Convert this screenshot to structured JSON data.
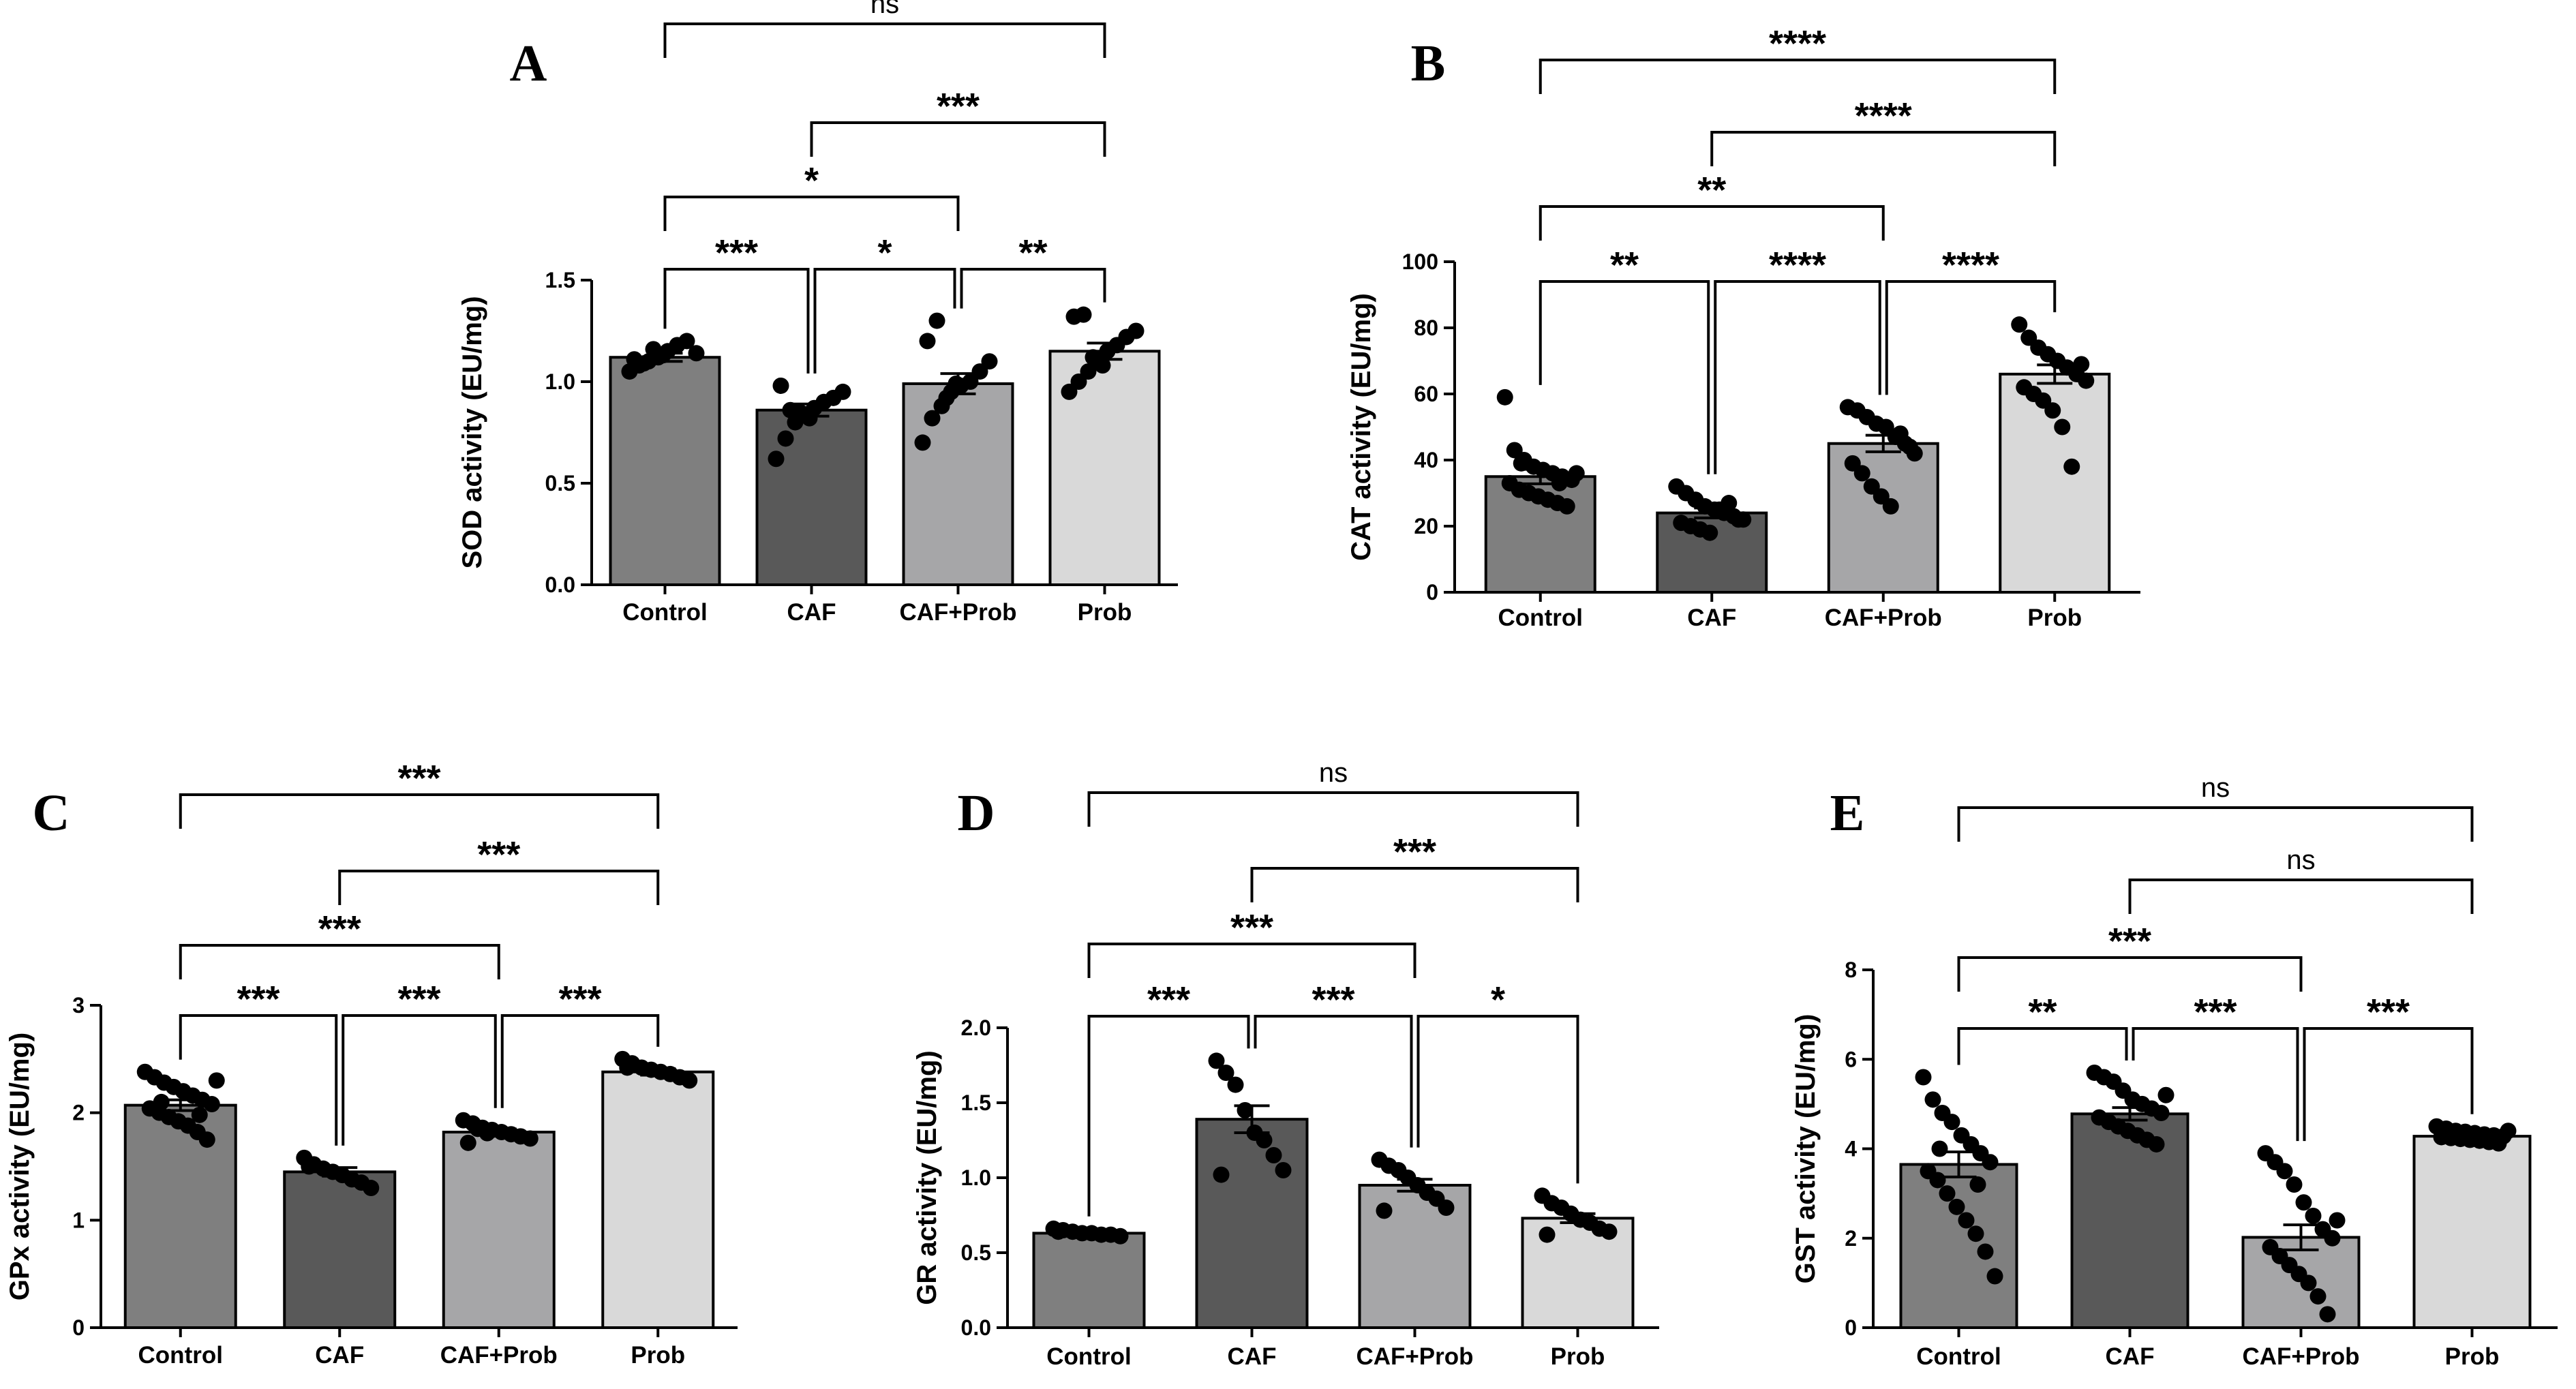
{
  "figure": {
    "group_colors": [
      "#7f7f7f",
      "#595959",
      "#a6a6a8",
      "#d9d9d9"
    ]
  },
  "chart_data": [
    {
      "id": "A",
      "type": "bar",
      "panel_label": "A",
      "title": "",
      "xlabel": "",
      "ylabel": "SOD activity (EU/mg)",
      "categories": [
        "Control",
        "CAF",
        "CAF+Prob",
        "Prob"
      ],
      "values": [
        1.12,
        0.86,
        0.99,
        1.15
      ],
      "sem": [
        0.02,
        0.03,
        0.05,
        0.04
      ],
      "ylim": [
        0,
        1.5
      ],
      "yticks": [
        0.0,
        0.5,
        1.0,
        1.5
      ],
      "ytick_labels": [
        "0.0",
        "0.5",
        "1.0",
        "1.5"
      ],
      "points": [
        [
          1.05,
          1.08,
          1.1,
          1.12,
          1.15,
          1.18,
          1.2,
          1.14,
          1.11,
          1.09,
          1.16,
          1.13
        ],
        [
          0.62,
          0.72,
          0.8,
          0.84,
          0.87,
          0.9,
          0.92,
          0.95,
          0.98,
          0.86,
          0.85,
          0.82
        ],
        [
          0.7,
          0.82,
          0.88,
          0.95,
          0.98,
          1.0,
          1.05,
          1.1,
          1.2,
          1.3,
          0.92,
          0.99
        ],
        [
          0.95,
          1.0,
          1.05,
          1.1,
          1.15,
          1.18,
          1.22,
          1.25,
          1.32,
          1.33,
          1.12,
          1.08
        ]
      ],
      "comparisons": [
        {
          "from": 0,
          "to": 3,
          "label": "ns",
          "level": 4
        },
        {
          "from": 1,
          "to": 3,
          "label": "***",
          "level": 3
        },
        {
          "from": 0,
          "to": 2,
          "label": "*",
          "level": 2
        },
        {
          "from": 0,
          "to": 1,
          "label": "***",
          "level": 1
        },
        {
          "from": 1,
          "to": 2,
          "label": "*",
          "level": 1
        },
        {
          "from": 2,
          "to": 3,
          "label": "**",
          "level": 1
        }
      ]
    },
    {
      "id": "B",
      "type": "bar",
      "panel_label": "B",
      "title": "",
      "xlabel": "",
      "ylabel": "CAT activity (EU/mg)",
      "categories": [
        "Control",
        "CAF",
        "CAF+Prob",
        "Prob"
      ],
      "values": [
        35,
        24,
        45,
        66
      ],
      "sem": [
        2.2,
        1.5,
        2.5,
        2.8
      ],
      "ylim": [
        0,
        100
      ],
      "yticks": [
        0,
        20,
        40,
        60,
        80,
        100
      ],
      "ytick_labels": [
        "0",
        "20",
        "40",
        "60",
        "80",
        "100"
      ],
      "points": [
        [
          59,
          43,
          40,
          38,
          37,
          36,
          35,
          34,
          33,
          31,
          30,
          29,
          28,
          27,
          26,
          36,
          39,
          33
        ],
        [
          32,
          30,
          28,
          26,
          25,
          24,
          23,
          22,
          21,
          20,
          19,
          18,
          25,
          27,
          22
        ],
        [
          56,
          55,
          53,
          51,
          50,
          47,
          45,
          42,
          39,
          36,
          32,
          29,
          26,
          48,
          44
        ],
        [
          81,
          77,
          74,
          72,
          70,
          68,
          66,
          64,
          62,
          60,
          58,
          55,
          50,
          38,
          69
        ]
      ],
      "comparisons": [
        {
          "from": 0,
          "to": 3,
          "label": "****",
          "level": 4
        },
        {
          "from": 1,
          "to": 3,
          "label": "****",
          "level": 3
        },
        {
          "from": 0,
          "to": 2,
          "label": "**",
          "level": 2
        },
        {
          "from": 0,
          "to": 1,
          "label": "**",
          "level": 1
        },
        {
          "from": 1,
          "to": 2,
          "label": "****",
          "level": 1
        },
        {
          "from": 2,
          "to": 3,
          "label": "****",
          "level": 1
        }
      ]
    },
    {
      "id": "C",
      "type": "bar",
      "panel_label": "C",
      "title": "",
      "xlabel": "",
      "ylabel": "GPx activity (EU/mg)",
      "categories": [
        "Control",
        "CAF",
        "CAF+Prob",
        "Prob"
      ],
      "values": [
        2.07,
        1.45,
        1.82,
        2.38
      ],
      "sem": [
        0.05,
        0.04,
        0.03,
        0.03
      ],
      "ylim": [
        0,
        3
      ],
      "yticks": [
        0,
        1,
        2,
        3
      ],
      "ytick_labels": [
        "0",
        "1",
        "2",
        "3"
      ],
      "points": [
        [
          2.38,
          2.33,
          2.28,
          2.24,
          2.2,
          2.16,
          2.12,
          2.08,
          2.04,
          2.0,
          1.96,
          1.92,
          1.88,
          1.82,
          1.75,
          2.3,
          2.1,
          1.98
        ],
        [
          1.58,
          1.52,
          1.48,
          1.45,
          1.42,
          1.38,
          1.35,
          1.3,
          1.5
        ],
        [
          1.93,
          1.9,
          1.86,
          1.84,
          1.82,
          1.8,
          1.78,
          1.76,
          1.72,
          1.85,
          1.81
        ],
        [
          2.5,
          2.46,
          2.42,
          2.4,
          2.38,
          2.36,
          2.33,
          2.3,
          2.42
        ]
      ],
      "comparisons": [
        {
          "from": 0,
          "to": 3,
          "label": "***",
          "level": 4
        },
        {
          "from": 1,
          "to": 3,
          "label": "***",
          "level": 3
        },
        {
          "from": 0,
          "to": 2,
          "label": "***",
          "level": 2
        },
        {
          "from": 0,
          "to": 1,
          "label": "***",
          "level": 1
        },
        {
          "from": 1,
          "to": 2,
          "label": "***",
          "level": 1
        },
        {
          "from": 2,
          "to": 3,
          "label": "***",
          "level": 1
        }
      ]
    },
    {
      "id": "D",
      "type": "bar",
      "panel_label": "D",
      "title": "",
      "xlabel": "",
      "ylabel": "GR activity (EU/mg)",
      "categories": [
        "Control",
        "CAF",
        "CAF+Prob",
        "Prob"
      ],
      "values": [
        0.63,
        1.39,
        0.95,
        0.73
      ],
      "sem": [
        0.01,
        0.09,
        0.04,
        0.03
      ],
      "ylim": [
        0,
        2.0
      ],
      "yticks": [
        0.0,
        0.5,
        1.0,
        1.5,
        2.0
      ],
      "ytick_labels": [
        "0.0",
        "0.5",
        "1.0",
        "1.5",
        "2.0"
      ],
      "points": [
        [
          0.66,
          0.65,
          0.64,
          0.63,
          0.63,
          0.62,
          0.62,
          0.61,
          0.64
        ],
        [
          1.78,
          1.7,
          1.62,
          1.45,
          1.3,
          1.25,
          1.15,
          1.05,
          1.02
        ],
        [
          1.12,
          1.08,
          1.05,
          1.0,
          0.95,
          0.9,
          0.86,
          0.8,
          0.78
        ],
        [
          0.88,
          0.83,
          0.8,
          0.76,
          0.72,
          0.7,
          0.66,
          0.64,
          0.62
        ]
      ],
      "comparisons": [
        {
          "from": 0,
          "to": 3,
          "label": "ns",
          "level": 4
        },
        {
          "from": 1,
          "to": 3,
          "label": "***",
          "level": 3
        },
        {
          "from": 0,
          "to": 2,
          "label": "***",
          "level": 2
        },
        {
          "from": 0,
          "to": 1,
          "label": "***",
          "level": 1
        },
        {
          "from": 1,
          "to": 2,
          "label": "***",
          "level": 1
        },
        {
          "from": 2,
          "to": 3,
          "label": "*",
          "level": 1
        }
      ]
    },
    {
      "id": "E",
      "type": "bar",
      "panel_label": "E",
      "title": "",
      "xlabel": "",
      "ylabel": "GST activity (EU/mg)",
      "categories": [
        "Control",
        "CAF",
        "CAF+Prob",
        "Prob"
      ],
      "values": [
        3.65,
        4.78,
        2.02,
        4.28
      ],
      "sem": [
        0.28,
        0.14,
        0.28,
        0.04
      ],
      "ylim": [
        0,
        8
      ],
      "yticks": [
        0,
        2,
        4,
        6,
        8
      ],
      "ytick_labels": [
        "0",
        "2",
        "4",
        "6",
        "8"
      ],
      "points": [
        [
          5.6,
          5.1,
          4.8,
          4.6,
          4.3,
          4.1,
          3.9,
          3.7,
          3.5,
          3.3,
          3.0,
          2.7,
          2.4,
          2.1,
          1.7,
          1.15,
          4.0,
          3.2
        ],
        [
          5.7,
          5.6,
          5.5,
          5.3,
          5.1,
          5.0,
          4.9,
          4.8,
          4.7,
          4.6,
          4.5,
          4.4,
          4.3,
          4.2,
          4.1,
          5.2
        ],
        [
          3.9,
          3.7,
          3.5,
          3.2,
          2.8,
          2.5,
          2.2,
          2.0,
          1.8,
          1.6,
          1.4,
          1.2,
          1.0,
          0.7,
          0.3,
          2.4
        ],
        [
          4.5,
          4.45,
          4.4,
          4.38,
          4.35,
          4.32,
          4.3,
          4.28,
          4.26,
          4.24,
          4.22,
          4.2,
          4.18,
          4.15,
          4.12,
          4.4,
          4.3,
          4.25
        ]
      ],
      "comparisons": [
        {
          "from": 0,
          "to": 3,
          "label": "ns",
          "level": 4
        },
        {
          "from": 1,
          "to": 3,
          "label": "ns",
          "level": 3
        },
        {
          "from": 0,
          "to": 2,
          "label": "***",
          "level": 2
        },
        {
          "from": 0,
          "to": 1,
          "label": "**",
          "level": 1
        },
        {
          "from": 1,
          "to": 2,
          "label": "***",
          "level": 1
        },
        {
          "from": 2,
          "to": 3,
          "label": "***",
          "level": 1
        }
      ]
    }
  ]
}
